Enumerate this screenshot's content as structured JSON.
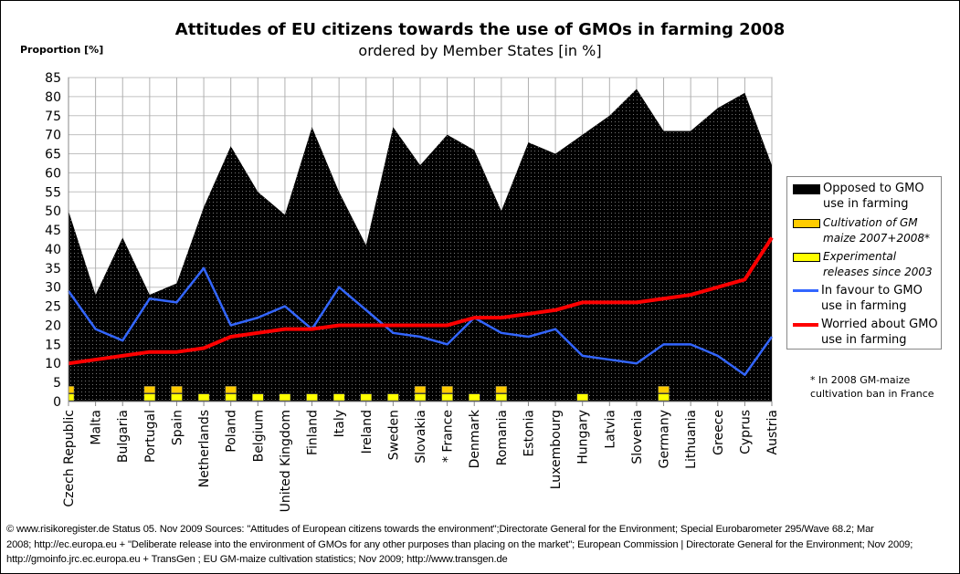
{
  "chart_data": {
    "type": "area+line",
    "title": "Attitudes of EU citizens towards the use of GMOs in farming 2008",
    "subtitle": "ordered by Member States [in %]",
    "ylabel": "Proportion [%]",
    "ylim": [
      0,
      85
    ],
    "yticks": [
      "0",
      "5",
      "10",
      "15",
      "20",
      "25",
      "30",
      "35",
      "40",
      "45",
      "50",
      "55",
      "60",
      "65",
      "70",
      "75",
      "80",
      "85"
    ],
    "grid": true,
    "legend_position": "right",
    "categories": [
      "Czech Republic",
      "Malta",
      "Bulgaria",
      "Portugal",
      "Spain",
      "Netherlands",
      "Poland",
      "Belgium",
      "United Kingdom",
      "Finland",
      "Italy",
      "Ireland",
      "Sweden",
      "Slovakia",
      "* France",
      "Denmark",
      "Romania",
      "Estonia",
      "Luxembourg",
      "Hungary",
      "Latvia",
      "Slovenia",
      "Germany",
      "Lithuania",
      "Greece",
      "Cyprus",
      "Austria"
    ],
    "series": [
      {
        "name": "Opposed to GMO use in farming",
        "type": "area",
        "color": "#000000",
        "values": [
          50,
          28,
          43,
          28,
          31,
          51,
          67,
          55,
          49,
          72,
          55,
          41,
          72,
          62,
          70,
          66,
          50,
          68,
          65,
          70,
          75,
          82,
          71,
          71,
          77,
          81,
          62
        ]
      },
      {
        "name": "Cultivation of GM maize 2007+2008*",
        "type": "marker",
        "color": "#FFCC00",
        "values": [
          1,
          0,
          0,
          1,
          1,
          0,
          1,
          0,
          0,
          0,
          0,
          0,
          0,
          1,
          1,
          0,
          1,
          0,
          0,
          0,
          0,
          0,
          1,
          0,
          0,
          0,
          0
        ]
      },
      {
        "name": "Experimental releases since 2003",
        "type": "marker",
        "color": "#FFFF00",
        "values": [
          1,
          0,
          0,
          1,
          1,
          1,
          1,
          1,
          1,
          1,
          1,
          1,
          1,
          1,
          1,
          1,
          1,
          0,
          0,
          1,
          0,
          0,
          1,
          0,
          0,
          0,
          0
        ]
      },
      {
        "name": "In favour to GMO use in farming",
        "type": "line",
        "color": "#3366FF",
        "values": [
          29,
          19,
          16,
          27,
          26,
          35,
          20,
          22,
          25,
          19,
          30,
          24,
          18,
          17,
          15,
          22,
          18,
          17,
          19,
          12,
          11,
          10,
          15,
          15,
          12,
          7,
          17
        ]
      },
      {
        "name": "Worried about GMO use in farming",
        "type": "line",
        "color": "#FF0000",
        "values": [
          10,
          11,
          12,
          13,
          13,
          14,
          17,
          18,
          19,
          19,
          20,
          20,
          20,
          20,
          20,
          22,
          22,
          23,
          24,
          26,
          26,
          26,
          27,
          28,
          30,
          32,
          43
        ]
      }
    ],
    "legend": [
      {
        "line1": "Opposed to GMO",
        "line2": "use in farming"
      },
      {
        "line1": "Cultivation of GM",
        "line2": "maize 2007+2008*"
      },
      {
        "line1": "Experimental",
        "line2": "releases since 2003"
      },
      {
        "line1": "In favour to GMO",
        "line2": "use in farming"
      },
      {
        "line1": "Worried about GMO",
        "line2": "use in farming"
      }
    ],
    "annotation": {
      "line1": "* In 2008 GM-maize",
      "line2": "cultivation ban in France"
    }
  },
  "footer": {
    "line1": "© www.risikoregister.de     Status 05. Nov 2009   Sources: \"Attitudes of European citizens towards the environment\";Directorate General for the Environment; Special Eurobarometer 295/Wave 68.2; Mar",
    "line2": "2008; http://ec.europa.eu + \"Deliberate release into the environment of GMOs for any other purposes than placing on the market\";  European Commission | Directorate General for the Environment; Nov  2009;",
    "line3": "http://gmoinfo.jrc.ec.europa.eu  +  TransGen ; EU GM-maize cultivation statistics; Nov 2009; http://www.transgen.de"
  }
}
